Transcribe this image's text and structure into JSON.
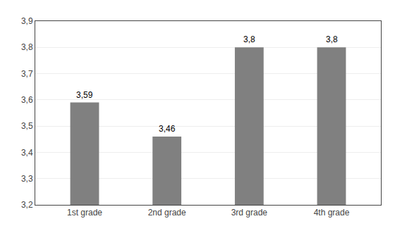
{
  "chart_data": {
    "type": "bar",
    "categories": [
      "1st grade",
      "2nd grade",
      "3rd grade",
      "4th grade"
    ],
    "values": [
      3.59,
      3.46,
      3.8,
      3.8
    ],
    "value_labels": [
      "3,59",
      "3,46",
      "3,8",
      "3,8"
    ],
    "data_labels": true,
    "color": "#808080",
    "ylim": [
      3.2,
      3.9
    ],
    "yticks": [
      {
        "value": 3.2,
        "label": "3,2"
      },
      {
        "value": 3.3,
        "label": "3,3"
      },
      {
        "value": 3.4,
        "label": "3,4"
      },
      {
        "value": 3.5,
        "label": "3,5"
      },
      {
        "value": 3.6,
        "label": "3,6"
      },
      {
        "value": 3.7,
        "label": "3,7"
      },
      {
        "value": 3.8,
        "label": "3,8"
      },
      {
        "value": 3.9,
        "label": "3,9"
      }
    ],
    "grid": true
  }
}
